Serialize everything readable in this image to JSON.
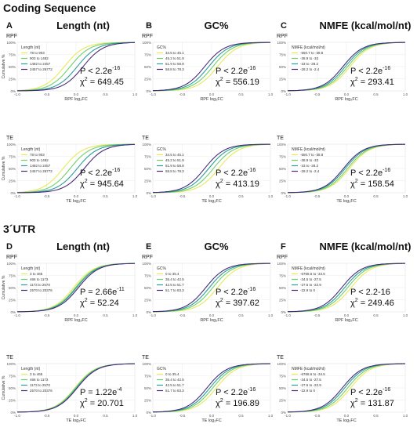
{
  "sections": [
    {
      "title": "Coding Sequence"
    },
    {
      "title": "3´UTR"
    }
  ],
  "columns": [
    {
      "letter_top": "A",
      "letter_bottom": "D",
      "title": "Length (nt)"
    },
    {
      "letter_top": "B",
      "letter_bottom": "E",
      "title": "GC%"
    },
    {
      "letter_top": "C",
      "letter_bottom": "F",
      "title": "NMFE (kcal/mol/nt)"
    }
  ],
  "colors": [
    "#e8e85a",
    "#6fd06a",
    "#2a9d9a",
    "#4b2a7a"
  ],
  "chart_data": [
    {
      "type": "line",
      "section": "Coding Sequence",
      "column": "Length (nt)",
      "row_label": "RPF",
      "legend_title": "Length (nt)",
      "series": [
        {
          "name": "78 to 903",
          "shift": -0.2
        },
        {
          "name": "903 to 1482",
          "shift": -0.1
        },
        {
          "name": "1482 to 2457",
          "shift": 0.02
        },
        {
          "name": "2457 to 26772",
          "shift": 0.12
        }
      ],
      "xlabel": "RPF log₂FC",
      "ylabel": "Cumulative %",
      "xticks": [
        "-1.0",
        "-0.5",
        "0.0",
        "0.5",
        "1.0"
      ],
      "yticks": [
        "0%",
        "25%",
        "50%",
        "75%",
        "100%"
      ],
      "xlim": [
        -1,
        1
      ],
      "ylim": [
        0,
        100
      ],
      "p_text": "P < 2.2e",
      "p_exp": "-16",
      "chi_value": "= 649.45"
    },
    {
      "type": "line",
      "section": "Coding Sequence",
      "column": "GC%",
      "row_label": "RPF",
      "legend_title": "GC%",
      "series": [
        {
          "name": "34.5 to 45.1",
          "shift": 0.1
        },
        {
          "name": "45.2 to 51.9",
          "shift": 0.02
        },
        {
          "name": "51.9 to 58.8",
          "shift": -0.05
        },
        {
          "name": "58.8 to 78.3",
          "shift": -0.12
        }
      ],
      "xlabel": "RPF log₂FC",
      "ylabel": "",
      "xticks": [
        "-1.0",
        "-0.5",
        "0.0",
        "0.5",
        "1.0"
      ],
      "yticks": [
        "0%",
        "25%",
        "50%",
        "75%",
        "100%"
      ],
      "xlim": [
        -1,
        1
      ],
      "ylim": [
        0,
        100
      ],
      "p_text": "P < 2.2e",
      "p_exp": "-16",
      "chi_value": "= 556.19"
    },
    {
      "type": "line",
      "section": "Coding Sequence",
      "column": "NMFE (kcal/mol/nt)",
      "row_label": "RPF",
      "legend_title": "NMFE (kcal/mol/nt)",
      "series": [
        {
          "name": "-550.7 to -38.8",
          "shift": 0.06
        },
        {
          "name": "-38.9 to -33",
          "shift": 0.02
        },
        {
          "name": "-33 to -28.2",
          "shift": -0.02
        },
        {
          "name": "-28.2 to -2.4",
          "shift": -0.06
        }
      ],
      "xlabel": "RPF log₂FC",
      "ylabel": "",
      "xticks": [
        "-1.0",
        "-0.5",
        "0.0",
        "0.5",
        "1.0"
      ],
      "yticks": [
        "0%",
        "25%",
        "50%",
        "75%",
        "100%"
      ],
      "xlim": [
        -1,
        1
      ],
      "ylim": [
        0,
        100
      ],
      "p_text": "P < 2.2e",
      "p_exp": "-16",
      "chi_value": "= 293.41"
    },
    {
      "type": "line",
      "section": "Coding Sequence",
      "column": "Length (nt)",
      "row_label": "TE",
      "legend_title": "Length (nt)",
      "series": [
        {
          "name": "78 to 903",
          "shift": -0.22
        },
        {
          "name": "903 to 1482",
          "shift": -0.1
        },
        {
          "name": "1482 to 2457",
          "shift": 0.02
        },
        {
          "name": "2457 to 26772",
          "shift": 0.14
        }
      ],
      "xlabel": "TE log₂FC",
      "ylabel": "Cumulative %",
      "xticks": [
        "-1.0",
        "-0.5",
        "0.0",
        "0.5",
        "1.0"
      ],
      "yticks": [
        "0%",
        "25%",
        "50%",
        "75%",
        "100%"
      ],
      "xlim": [
        -1,
        1
      ],
      "ylim": [
        0,
        100
      ],
      "p_text": "P < 2.2e",
      "p_exp": "-16",
      "chi_value": "= 945.64"
    },
    {
      "type": "line",
      "section": "Coding Sequence",
      "column": "GC%",
      "row_label": "TE",
      "legend_title": "GC%",
      "series": [
        {
          "name": "34.5 to 45.1",
          "shift": 0.12
        },
        {
          "name": "45.2 to 51.9",
          "shift": 0.03
        },
        {
          "name": "51.9 to 58.8",
          "shift": -0.05
        },
        {
          "name": "58.8 to 78.3",
          "shift": -0.12
        }
      ],
      "xlabel": "TE log₂FC",
      "ylabel": "",
      "xticks": [
        "-1.0",
        "-0.5",
        "0.0",
        "0.5",
        "1.0"
      ],
      "yticks": [
        "0%",
        "25%",
        "50%",
        "75%",
        "100%"
      ],
      "xlim": [
        -1,
        1
      ],
      "ylim": [
        0,
        100
      ],
      "p_text": "P < 2.2e",
      "p_exp": "-16",
      "chi_value": "= 413.19"
    },
    {
      "type": "line",
      "section": "Coding Sequence",
      "column": "NMFE (kcal/mol/nt)",
      "row_label": "TE",
      "legend_title": "NMFE (kcal/mol/nt)",
      "series": [
        {
          "name": "-550.7 to -38.8",
          "shift": 0.05
        },
        {
          "name": "-38.9 to -33",
          "shift": 0.02
        },
        {
          "name": "-33 to -28.2",
          "shift": -0.02
        },
        {
          "name": "-28.2 to -2.4",
          "shift": -0.05
        }
      ],
      "xlabel": "TE log₂FC",
      "ylabel": "",
      "xticks": [
        "-1.0",
        "-0.5",
        "0.0",
        "0.5",
        "1.0"
      ],
      "yticks": [
        "0%",
        "25%",
        "50%",
        "75%",
        "100%"
      ],
      "xlim": [
        -1,
        1
      ],
      "ylim": [
        0,
        100
      ],
      "p_text": "P < 2.2e",
      "p_exp": "-16",
      "chi_value": "= 158.54"
    },
    {
      "type": "line",
      "section": "3´UTR",
      "column": "Length (nt)",
      "row_label": "RPF",
      "legend_title": "Length (nt)",
      "series": [
        {
          "name": "3 to 465",
          "shift": -0.04
        },
        {
          "name": "466 to 1173",
          "shift": -0.01
        },
        {
          "name": "1173 to 2570",
          "shift": 0.01
        },
        {
          "name": "2570 to 20376",
          "shift": 0.04
        }
      ],
      "xlabel": "RPF log₂FC",
      "ylabel": "Cumulative %",
      "xticks": [
        "-1.0",
        "-0.5",
        "0.0",
        "0.5",
        "1.0"
      ],
      "yticks": [
        "0%",
        "25%",
        "50%",
        "75%",
        "100%"
      ],
      "xlim": [
        -1,
        1
      ],
      "ylim": [
        0,
        100
      ],
      "p_text": "P = 2.66e",
      "p_exp": "-11",
      "chi_value": "= 52.24"
    },
    {
      "type": "line",
      "section": "3´UTR",
      "column": "GC%",
      "row_label": "RPF",
      "legend_title": "GC%",
      "series": [
        {
          "name": "0 to 35.4",
          "shift": 0.1
        },
        {
          "name": "35.4 to 42.5",
          "shift": 0.02
        },
        {
          "name": "42.5 to 51.7",
          "shift": -0.04
        },
        {
          "name": "51.7 to 83.3",
          "shift": -0.1
        }
      ],
      "xlabel": "RPF log₂FC",
      "ylabel": "",
      "xticks": [
        "-1.0",
        "-0.5",
        "0.0",
        "0.5",
        "1.0"
      ],
      "yticks": [
        "0%",
        "25%",
        "50%",
        "75%",
        "100%"
      ],
      "xlim": [
        -1,
        1
      ],
      "ylim": [
        0,
        100
      ],
      "p_text": "P < 2.2e",
      "p_exp": "-16",
      "chi_value": "= 397.62"
    },
    {
      "type": "line",
      "section": "3´UTR",
      "column": "NMFE (kcal/mol/nt)",
      "row_label": "RPF",
      "legend_title": "NMFE (kcal/mol/nt)",
      "series": [
        {
          "name": "-6768.6 to -34.5",
          "shift": 0.08
        },
        {
          "name": "-34.5 to -27.5",
          "shift": 0.02
        },
        {
          "name": "-27.5 to -22.9",
          "shift": -0.03
        },
        {
          "name": "-22.9 to 0",
          "shift": -0.08
        }
      ],
      "xlabel": "RPF log₂FC",
      "ylabel": "",
      "xticks": [
        "-1.0",
        "-0.5",
        "0.0",
        "0.5",
        "1.0"
      ],
      "yticks": [
        "0%",
        "25%",
        "50%",
        "75%",
        "100%"
      ],
      "xlim": [
        -1,
        1
      ],
      "ylim": [
        0,
        100
      ],
      "p_text": "P < 2.2-16",
      "p_exp": "",
      "chi_value": "= 249.46"
    },
    {
      "type": "line",
      "section": "3´UTR",
      "column": "Length (nt)",
      "row_label": "TE",
      "legend_title": "Length (nt)",
      "series": [
        {
          "name": "3 to 465",
          "shift": -0.02
        },
        {
          "name": "466 to 1173",
          "shift": -0.01
        },
        {
          "name": "1173 to 2570",
          "shift": 0.01
        },
        {
          "name": "2570 to 20376",
          "shift": 0.02
        }
      ],
      "xlabel": "TE log₂FC",
      "ylabel": "Cumulative %",
      "xticks": [
        "-1.0",
        "-0.5",
        "0.0",
        "0.5",
        "1.0"
      ],
      "yticks": [
        "0%",
        "25%",
        "50%",
        "75%",
        "100%"
      ],
      "xlim": [
        -1,
        1
      ],
      "ylim": [
        0,
        100
      ],
      "p_text": "P = 1.22e",
      "p_exp": "-4",
      "chi_value": "= 20.701"
    },
    {
      "type": "line",
      "section": "3´UTR",
      "column": "GC%",
      "row_label": "TE",
      "legend_title": "GC%",
      "series": [
        {
          "name": "0 to 35.4",
          "shift": 0.08
        },
        {
          "name": "35.4 to 42.5",
          "shift": 0.02
        },
        {
          "name": "42.5 to 51.7",
          "shift": -0.03
        },
        {
          "name": "51.7 to 83.3",
          "shift": -0.08
        }
      ],
      "xlabel": "TE log₂FC",
      "ylabel": "",
      "xticks": [
        "-1.0",
        "-0.5",
        "0.0",
        "0.5",
        "1.0"
      ],
      "yticks": [
        "0%",
        "25%",
        "50%",
        "75%",
        "100%"
      ],
      "xlim": [
        -1,
        1
      ],
      "ylim": [
        0,
        100
      ],
      "p_text": "P < 2.2e",
      "p_exp": "-16",
      "chi_value": "= 196.89"
    },
    {
      "type": "line",
      "section": "3´UTR",
      "column": "NMFE (kcal/mol/nt)",
      "row_label": "TE",
      "legend_title": "NMFE (kcal/mol/nt)",
      "series": [
        {
          "name": "-6768.6 to -34.5",
          "shift": 0.07
        },
        {
          "name": "-34.5 to -27.5",
          "shift": 0.02
        },
        {
          "name": "-27.5 to -22.9",
          "shift": -0.03
        },
        {
          "name": "-22.9 to 0",
          "shift": -0.07
        }
      ],
      "xlabel": "TE log₂FC",
      "ylabel": "",
      "xticks": [
        "-1.0",
        "-0.5",
        "0.0",
        "0.5",
        "1.0"
      ],
      "yticks": [
        "0%",
        "25%",
        "50%",
        "75%",
        "100%"
      ],
      "xlim": [
        -1,
        1
      ],
      "ylim": [
        0,
        100
      ],
      "p_text": "P < 2.2e",
      "p_exp": "-16",
      "chi_value": "= 131.87"
    }
  ]
}
